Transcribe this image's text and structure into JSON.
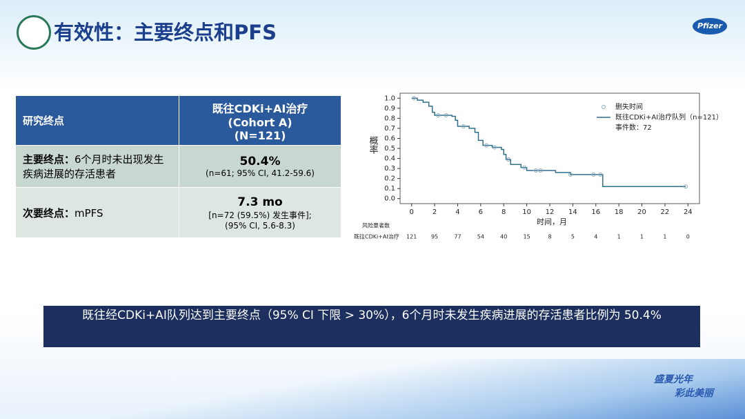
{
  "header": {
    "title": "有效性：主要终点和PFS",
    "brand": "Pfizer"
  },
  "table": {
    "header": [
      "研究终点",
      [
        "既往CDKi+AI治疗",
        "(Cohort A)",
        "(N=121)"
      ]
    ],
    "rows": [
      {
        "label_bold": "主要终点：",
        "label": "6个月时未出现发生疾病进展的存活患者",
        "value": "50.4%",
        "notes": [
          "(n=61; 95% CI, 41.2-59.6)"
        ]
      },
      {
        "label_bold": "次要终点：",
        "label": "mPFS",
        "value": "7.3 mo",
        "notes": [
          "[n=72 (59.5%) 发生事件];",
          "(95% CI, 5.6-8.3)"
        ]
      }
    ]
  },
  "chart_data": {
    "type": "line",
    "step": true,
    "x_label": "时间，月",
    "y_label": "概率",
    "xlim": [
      -1,
      25
    ],
    "xticks": [
      0,
      2,
      4,
      6,
      8,
      10,
      12,
      14,
      16,
      18,
      20,
      22,
      24
    ],
    "ylim": [
      -0.05,
      1.05
    ],
    "yticks": [
      {
        "value": 0,
        "label": "0.0"
      },
      {
        "value": 0.1,
        "label": "0.1"
      },
      {
        "value": 0.2,
        "label": "0.2"
      },
      {
        "value": 0.3,
        "label": "0.3"
      },
      {
        "value": 0.4,
        "label": "0.4"
      },
      {
        "value": 0.5,
        "label": "0.5"
      },
      {
        "value": 0.6,
        "label": "0.6"
      },
      {
        "value": 0.7,
        "label": "0.7"
      },
      {
        "value": 0.8,
        "label": "0.8"
      },
      {
        "value": 0.9,
        "label": "0.9"
      },
      {
        "value": 1,
        "label": "1.0"
      }
    ],
    "series": [
      {
        "name": "既往CDKi+AI治疗队列（n=121）",
        "color": "#2f6f8f",
        "x": [
          0,
          0.5,
          1,
          1.5,
          1.8,
          2,
          3.5,
          3.8,
          4,
          5,
          5.5,
          5.8,
          6.2,
          7,
          7.8,
          8,
          8.2,
          8.6,
          9.5,
          10,
          12.5,
          13.8,
          16.6,
          23.8
        ],
        "values": [
          1.0,
          0.98,
          0.96,
          0.92,
          0.86,
          0.83,
          0.82,
          0.78,
          0.72,
          0.7,
          0.66,
          0.58,
          0.53,
          0.51,
          0.49,
          0.44,
          0.39,
          0.34,
          0.31,
          0.28,
          0.26,
          0.24,
          0.12,
          0.12
        ]
      },
      {
        "name": "删失时间",
        "color": "#8aa8b8",
        "x": [
          0.2,
          2.3,
          3.0,
          4.5,
          6.5,
          7.2,
          8.4,
          9.8,
          10.8,
          11.2,
          13.8,
          15.8,
          16.4,
          23.8
        ],
        "values": [
          1.0,
          0.83,
          0.83,
          0.72,
          0.53,
          0.51,
          0.39,
          0.31,
          0.28,
          0.28,
          0.24,
          0.24,
          0.24,
          0.12
        ]
      }
    ],
    "annotation": "事件数：72",
    "at_risk": {
      "title": "风险患者数",
      "name": "既往CDKi+AI治疗",
      "values": [
        121,
        95,
        77,
        54,
        40,
        15,
        8,
        5,
        4,
        1,
        1,
        1,
        0
      ]
    }
  },
  "conclusion": "既往经CDKi+AI队列达到主要终点（95% CI 下限 > 30%），6个月时未发生疾病进展的存活患者比例为 50.4%",
  "footer_logo": [
    "盛夏光年",
    "彩此美丽"
  ]
}
